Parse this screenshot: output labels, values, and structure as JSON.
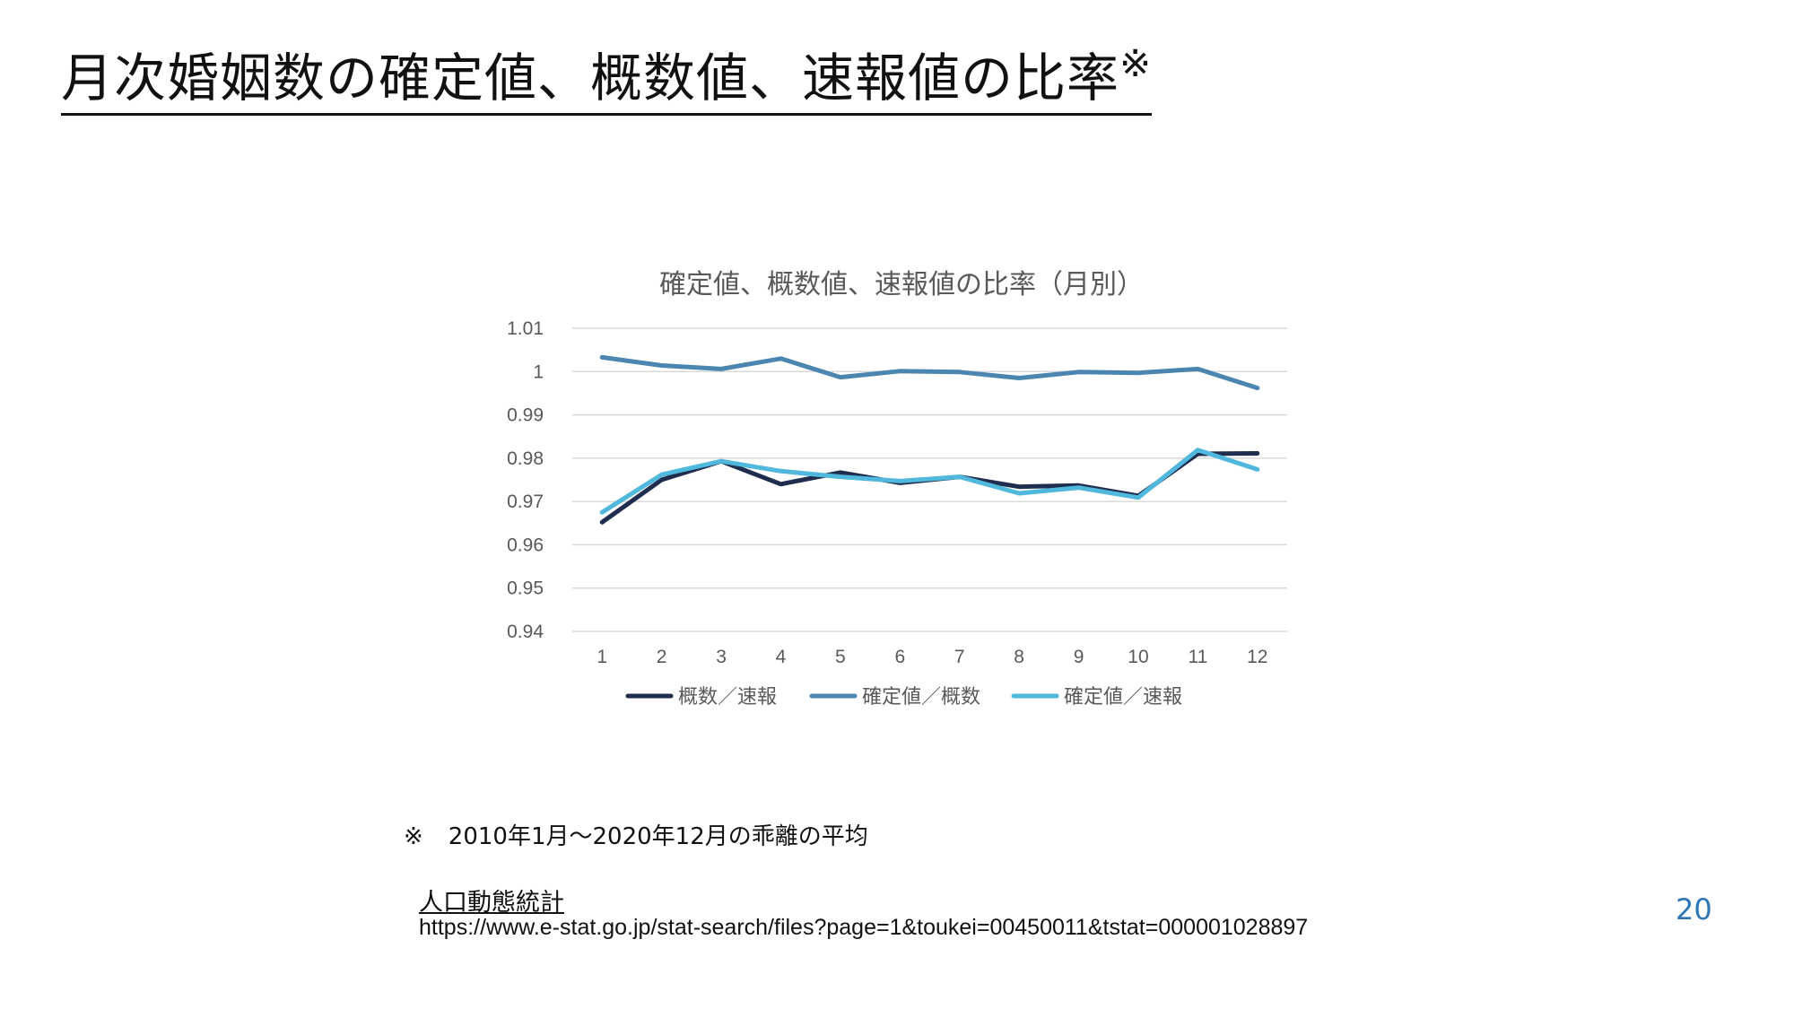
{
  "slide": {
    "title": "月次婚姻数の確定値、概数値、速報値の比率",
    "title_mark": "※",
    "footnote_symbol": "※",
    "footnote_text": "2010年1月～2020年12月の乖離の平均",
    "source_label": "人口動態統計",
    "source_url": "https://www.e-stat.go.jp/stat-search/files?page=1&toukei=00450011&tstat=000001028897",
    "page_number": "20"
  },
  "chart_data": {
    "type": "line",
    "title": "確定値、概数値、速報値の比率（月別）",
    "categories": [
      "1",
      "2",
      "3",
      "4",
      "5",
      "6",
      "7",
      "8",
      "9",
      "10",
      "11",
      "12"
    ],
    "ylim": [
      0.94,
      1.01
    ],
    "yticks": [
      0.94,
      0.95,
      0.96,
      0.97,
      0.98,
      0.99,
      1,
      1.01
    ],
    "ytick_labels": [
      "0.94",
      "0.95",
      "0.96",
      "0.97",
      "0.98",
      "0.99",
      "1",
      "1.01"
    ],
    "grid": true,
    "legend_position": "bottom",
    "series": [
      {
        "name": "概数／速報",
        "color": "#1f2d4e",
        "values": [
          0.9652,
          0.975,
          0.9793,
          0.974,
          0.9767,
          0.9743,
          0.9757,
          0.9734,
          0.9737,
          0.9713,
          0.981,
          0.9811
        ]
      },
      {
        "name": "確定値／概数",
        "color": "#4a86b0",
        "values": [
          1.0033,
          1.0014,
          1.0006,
          1.003,
          0.9987,
          1.0001,
          0.9999,
          0.9985,
          0.9999,
          0.9997,
          1.0006,
          0.9962
        ]
      },
      {
        "name": "確定値／速報",
        "color": "#4fb8dc",
        "values": [
          0.9675,
          0.9762,
          0.9793,
          0.977,
          0.9757,
          0.9747,
          0.9757,
          0.9719,
          0.9732,
          0.9709,
          0.9819,
          0.9774
        ]
      }
    ]
  }
}
